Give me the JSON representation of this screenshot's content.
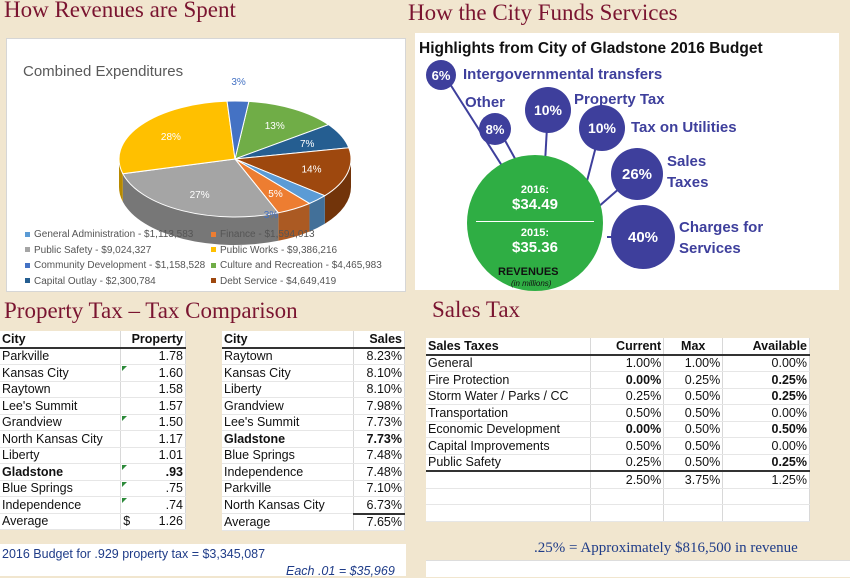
{
  "titles": {
    "spent": "How Revenues are Spent",
    "funds": "How the City Funds Services",
    "property": "Property Tax – Tax Comparison",
    "sales": "Sales Tax"
  },
  "chart_data": [
    {
      "type": "pie",
      "title": "Combined Expenditures",
      "slices": [
        {
          "label": "General Administration",
          "amount": "$1,113,583",
          "percent": "3%",
          "value": 3,
          "color": "#5b9bd5"
        },
        {
          "label": "Finance",
          "amount": "$1,594,013",
          "percent": "5%",
          "value": 5,
          "color": "#ed7d31"
        },
        {
          "label": "Public Safety",
          "amount": "$9,024,327",
          "percent": "27%",
          "value": 27,
          "color": "#a5a5a5"
        },
        {
          "label": "Public Works",
          "amount": "$9,386,216",
          "percent": "28%",
          "value": 28,
          "color": "#ffc000"
        },
        {
          "label": "Community Development",
          "amount": "$1,158,528",
          "percent": "3%",
          "value": 3,
          "color": "#4472c4"
        },
        {
          "label": "Culture and Recreation",
          "amount": "$4,465,983",
          "percent": "13%",
          "value": 13,
          "color": "#70ad47"
        },
        {
          "label": "Capital Outlay",
          "amount": "$2,300,784",
          "percent": "7%",
          "value": 7,
          "color": "#255e91"
        },
        {
          "label": "Debt Service",
          "amount": "$4,649,419",
          "percent": "14%",
          "value": 14,
          "color": "#9e480e"
        }
      ],
      "legend": [
        "General Administration -  $1,113,583",
        "Finance -  $1,594,013",
        "Public Safety -  $9,024,327",
        "Public Works -  $9,386,216",
        "Community Development -  $1,158,528",
        "Culture and Recreation -  $4,465,983",
        "Capital Outlay -  $2,300,784",
        "Debt Service -  $4,649,419"
      ]
    },
    {
      "type": "bubble",
      "title": "Highlights from City of Gladstone 2016 Budget",
      "center": {
        "year2016": "2016:",
        "value2016": "$34.49",
        "year2015": "2015:",
        "value2015": "$35.36"
      },
      "footer": "REVENUES",
      "footer_sub": "(in millions)",
      "items": [
        {
          "percent": "6%",
          "label": "Intergovernmental transfers",
          "value": 6
        },
        {
          "percent": "8%",
          "label": "Other",
          "value": 8
        },
        {
          "percent": "10%",
          "label": "Property Tax",
          "value": 10
        },
        {
          "percent": "10%",
          "label": "Tax on Utilities",
          "value": 10
        },
        {
          "percent": "26%",
          "label": "Sales Taxes",
          "value": 26
        },
        {
          "percent": "40%",
          "label": "Charges for Services",
          "value": 40
        }
      ]
    }
  ],
  "property_table": {
    "headers": [
      "City",
      "Property"
    ],
    "rows": [
      [
        "Parkville",
        "1.78"
      ],
      [
        "Kansas City",
        "1.60"
      ],
      [
        "Raytown",
        "1.58"
      ],
      [
        "Lee's Summit",
        "1.57"
      ],
      [
        "Grandview",
        "1.50"
      ],
      [
        "North Kansas City",
        "1.17"
      ],
      [
        "Liberty",
        "1.01"
      ],
      [
        "Gladstone",
        ".93"
      ],
      [
        "Blue Springs",
        ".75"
      ],
      [
        "Independence",
        ".74"
      ]
    ],
    "average_label": "Average",
    "average_currency": "$",
    "average_value": "1.26",
    "budget_note": "2016 Budget for .929 property tax = $3,345,087",
    "each_note": "Each .01 = $35,969"
  },
  "sales_compare_table": {
    "headers": [
      "City",
      "Sales"
    ],
    "rows": [
      [
        "Raytown",
        "8.23%"
      ],
      [
        "Kansas City",
        "8.10%"
      ],
      [
        "Liberty",
        "8.10%"
      ],
      [
        "Grandview",
        "7.98%"
      ],
      [
        "Lee's Summit",
        "7.73%"
      ],
      [
        "Gladstone",
        "7.73%"
      ],
      [
        "Blue Springs",
        "7.48%"
      ],
      [
        "Independence",
        "7.48%"
      ],
      [
        "Parkville",
        "7.10%"
      ],
      [
        "North Kansas City",
        "6.73%"
      ]
    ],
    "average_label": "Average",
    "average_value": "7.65%"
  },
  "sales_tax_table": {
    "headers": [
      "Sales Taxes",
      "Current",
      "Max",
      "Available"
    ],
    "rows": [
      [
        "General",
        "1.00%",
        "1.00%",
        "0.00%"
      ],
      [
        "Fire Protection",
        "0.00%",
        "0.25%",
        "0.25%"
      ],
      [
        "Storm Water / Parks / CC",
        "0.25%",
        "0.50%",
        "0.25%"
      ],
      [
        "Transportation",
        "0.50%",
        "0.50%",
        "0.00%"
      ],
      [
        "Economic Development",
        "0.00%",
        "0.50%",
        "0.50%"
      ],
      [
        "Capital Improvements",
        "0.50%",
        "0.50%",
        "0.00%"
      ],
      [
        "Public Safety",
        "0.25%",
        "0.50%",
        "0.25%"
      ]
    ],
    "totals": [
      "",
      "2.50%",
      "3.75%",
      "1.25%"
    ],
    "revenue_note": ".25% = Approximately $816,500 in revenue"
  }
}
